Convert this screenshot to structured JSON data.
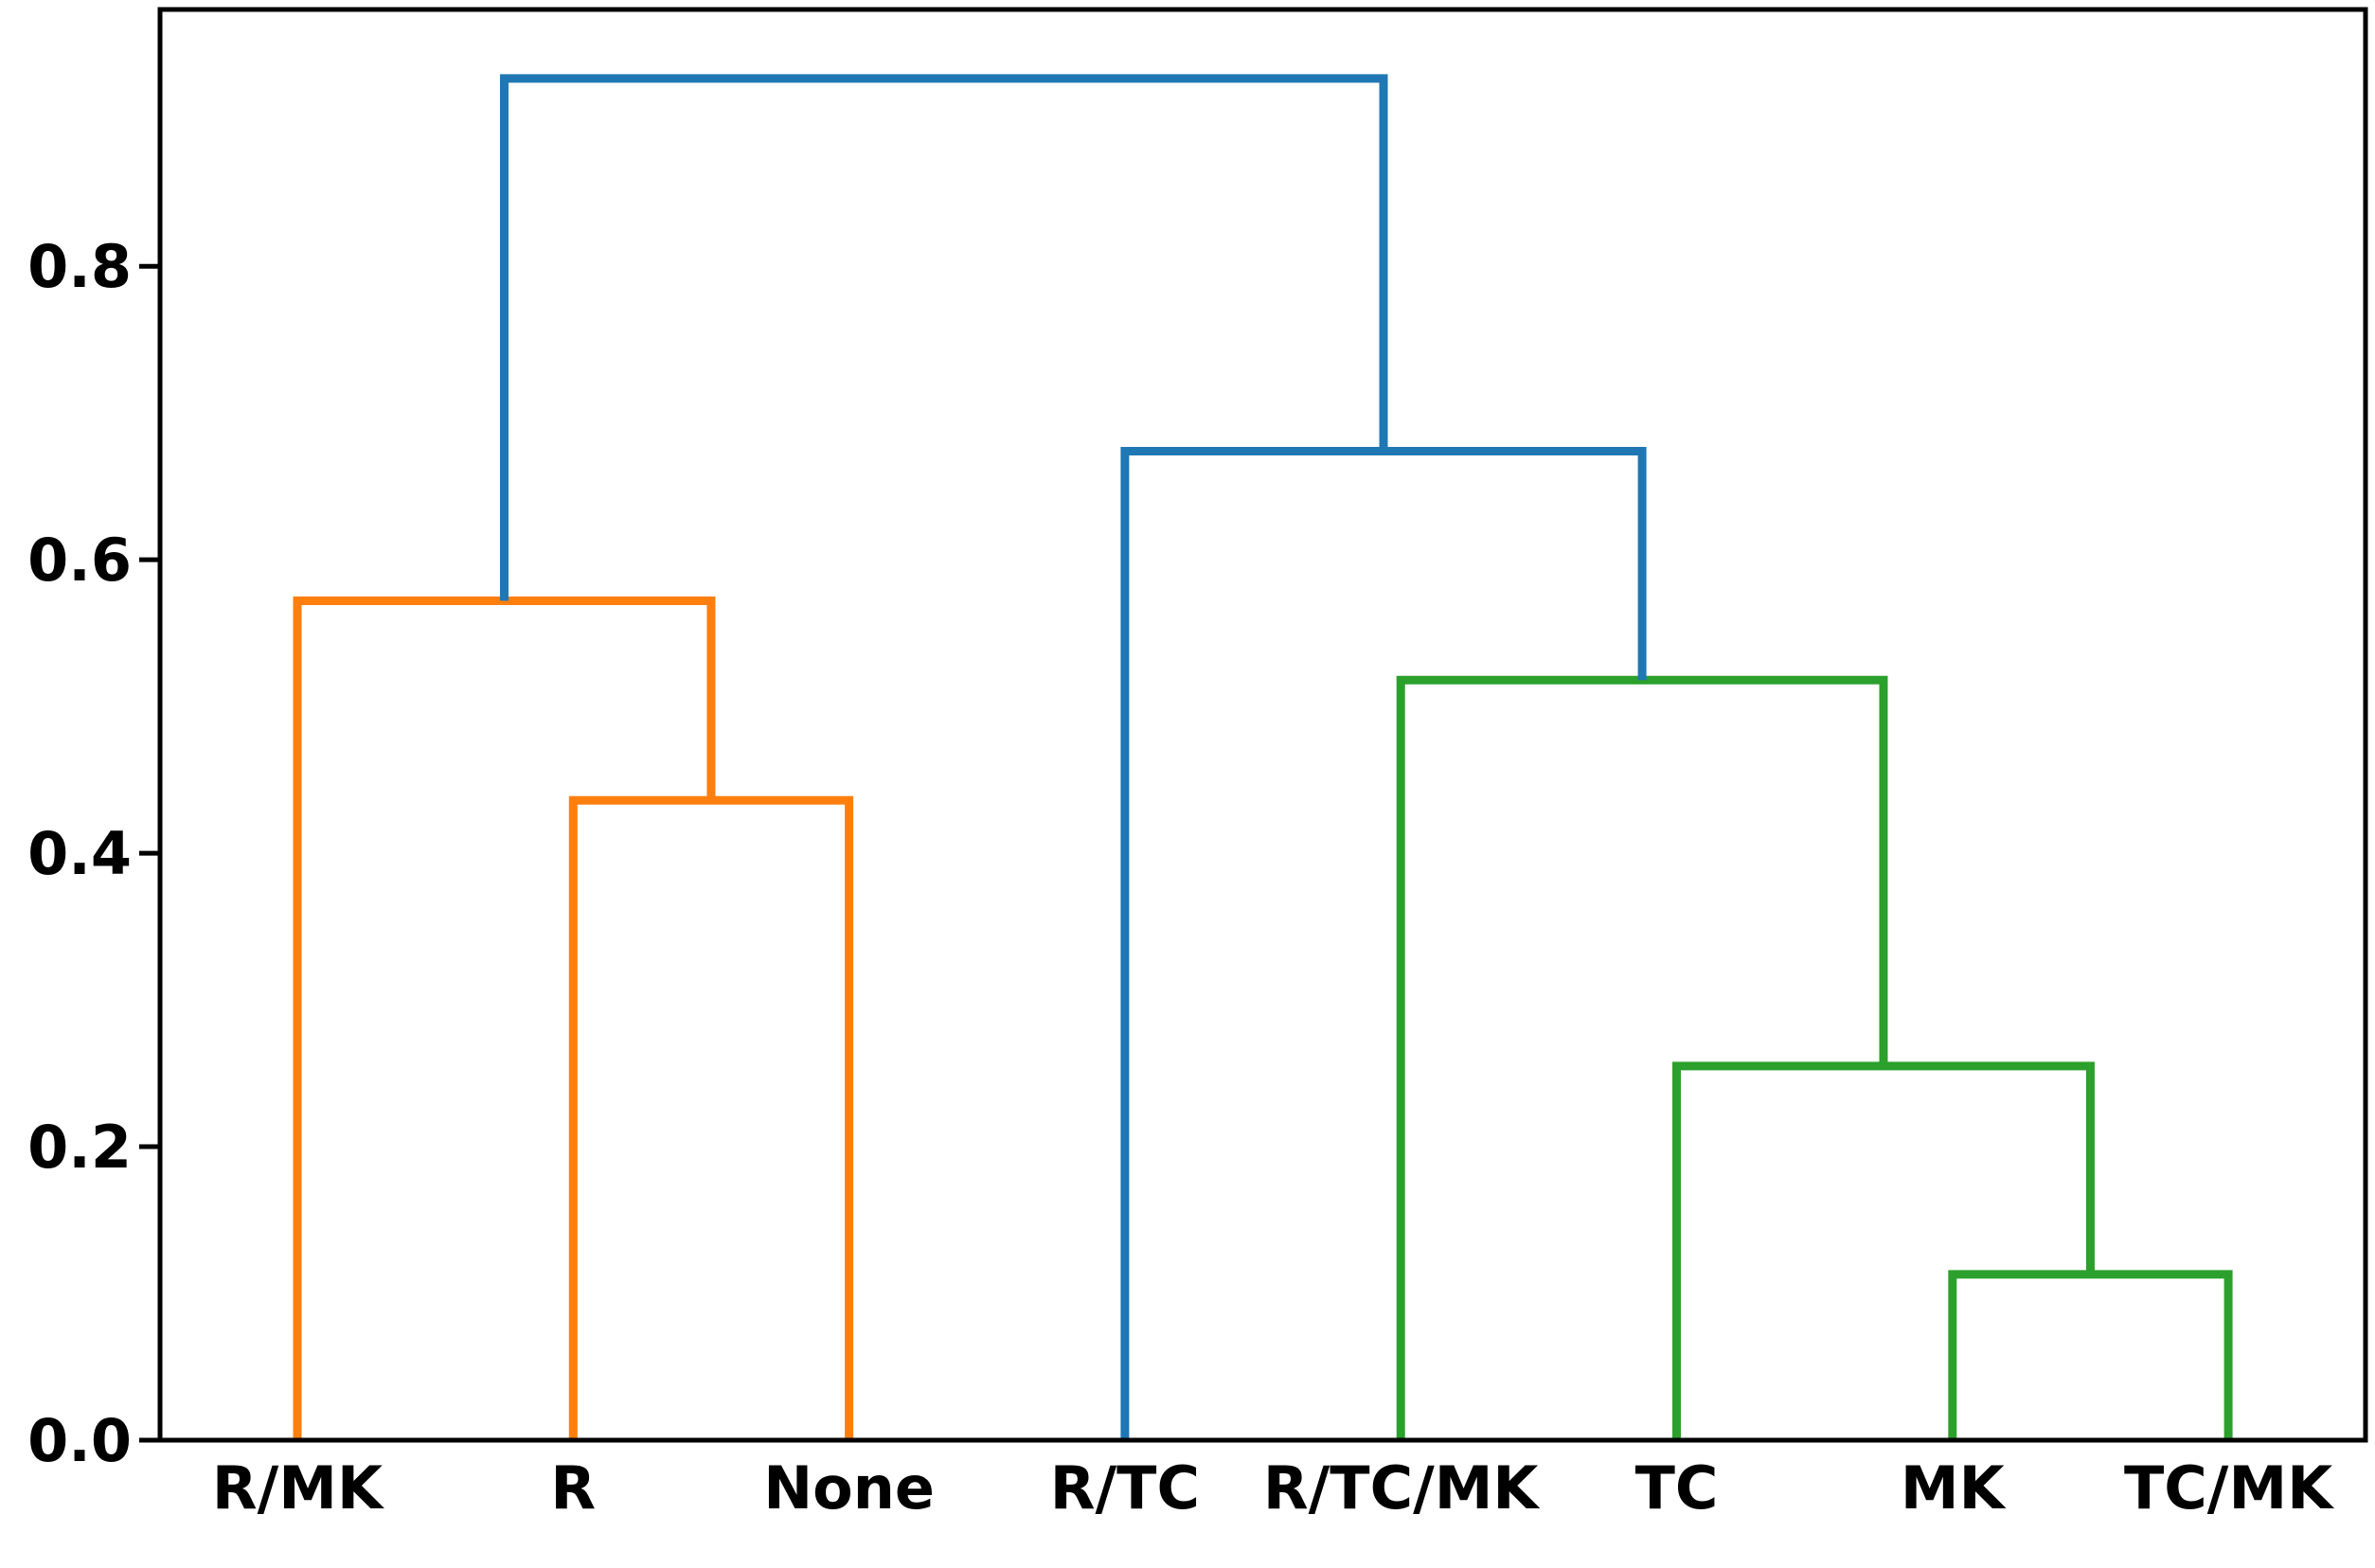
{
  "chart_data": {
    "type": "dendrogram",
    "title": "",
    "xlabel": "",
    "ylabel": "",
    "ylim": [
      0,
      0.975
    ],
    "yticks": [
      0.0,
      0.2,
      0.4,
      0.6,
      0.8
    ],
    "ytick_labels": [
      "0.0",
      "0.2",
      "0.4",
      "0.6",
      "0.8"
    ],
    "leaves": [
      "R/MK",
      "R",
      "None",
      "R/TC",
      "R/TC/MK",
      "TC",
      "MK",
      "TC/MK"
    ],
    "colors": {
      "orange": "#ff7f0e",
      "green": "#2ca02c",
      "blue": "#1f77b4"
    },
    "merges": [
      {
        "left": "MK",
        "right": "TC/MK",
        "height": 0.113,
        "color": "green"
      },
      {
        "left": "TC",
        "right": "MK+TC/MK",
        "height": 0.255,
        "color": "green"
      },
      {
        "left": "R",
        "right": "None",
        "height": 0.436,
        "color": "orange"
      },
      {
        "left": "R/TC/MK",
        "right": "TC+MK+TC/MK",
        "height": 0.518,
        "color": "green"
      },
      {
        "left": "R/MK",
        "right": "R+None",
        "height": 0.572,
        "color": "orange"
      },
      {
        "left": "R/TC",
        "right": "R/TC/MK+TC+MK+TC/MK",
        "height": 0.674,
        "color": "blue"
      },
      {
        "left": "R/MK+R+None",
        "right": "R/TC+R/TC/MK+TC+MK+TC/MK",
        "height": 0.928,
        "color": "blue"
      }
    ]
  }
}
